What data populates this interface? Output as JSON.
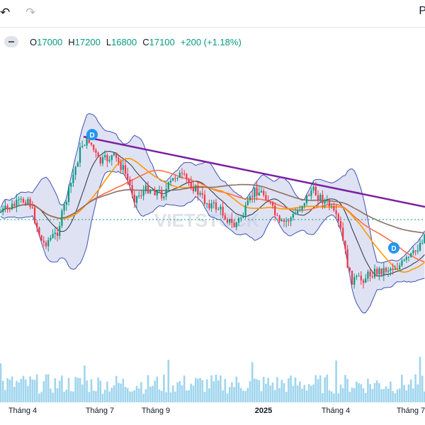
{
  "toolbar": {
    "undo_icon": "undo-icon",
    "redo_icon": "redo-icon",
    "right_label": "P"
  },
  "legend": {
    "open_label": "O",
    "open": "17000",
    "high_label": "H",
    "high": "17200",
    "low_label": "L",
    "low": "16800",
    "close_label": "C",
    "close": "17100",
    "change": "+200 (+1.18%)"
  },
  "colors": {
    "up": "#089981",
    "down": "#f23645",
    "trendline": "#7b1fa2",
    "bollinger_line": "#3f51b5",
    "bollinger_fill": "#c5cae9",
    "ma_fast": "#ff7043",
    "ma_medium": "#ff9800",
    "ma_slow": "#8d6e63",
    "volume": "#7fc7e8",
    "price_line": "#089981"
  },
  "chart_data": {
    "type": "candlestick",
    "watermark": "VIETSTOCK",
    "x_tick_labels": [
      "Tháng 4",
      "Tháng 7",
      "Tháng 9",
      "2025",
      "Tháng 4",
      "Tháng 7"
    ],
    "overlays": [
      "Bollinger Bands",
      "Moving Average (fast)",
      "Moving Average (medium)",
      "Moving Average (slow)",
      "Descending trendline",
      "Volume"
    ],
    "markers": [
      {
        "label": "D",
        "at": "Tháng 7 peak"
      },
      {
        "label": "D",
        "at": "Tháng 7 (2025)"
      }
    ],
    "last_bar": {
      "open": 17000,
      "high": 17200,
      "low": 16800,
      "close": 17100,
      "change": 200,
      "change_pct": 1.18
    }
  }
}
